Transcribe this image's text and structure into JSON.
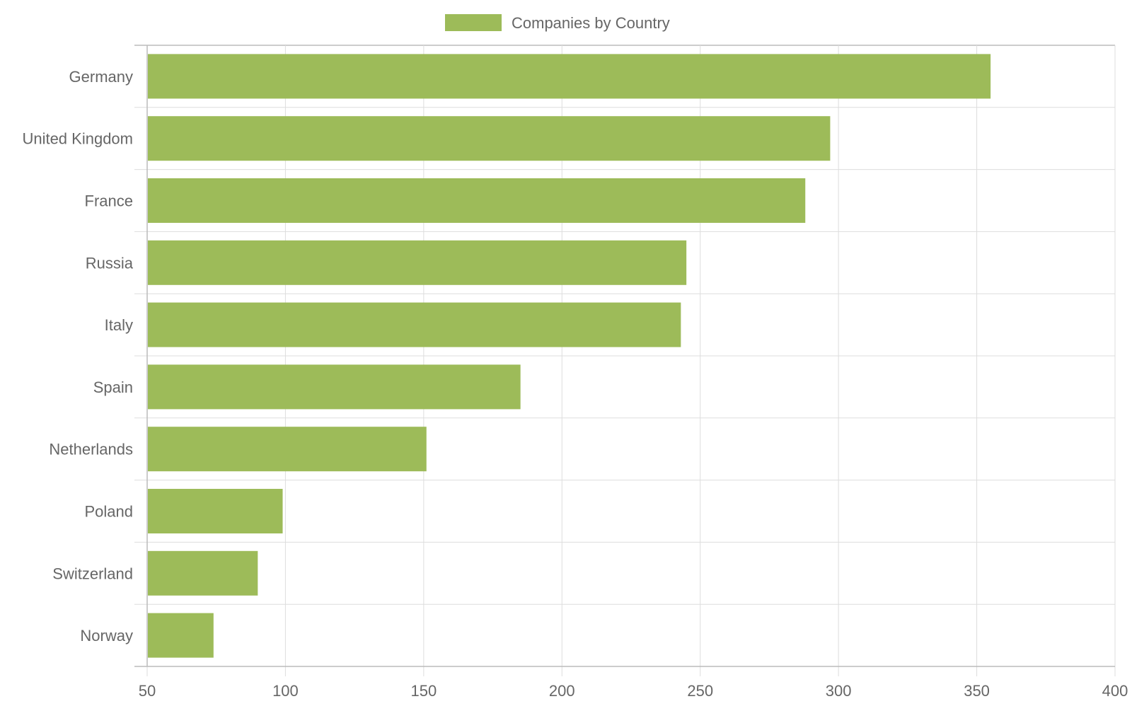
{
  "chart_data": {
    "type": "bar",
    "orientation": "horizontal",
    "categories": [
      "Germany",
      "United Kingdom",
      "France",
      "Russia",
      "Italy",
      "Spain",
      "Netherlands",
      "Poland",
      "Switzerland",
      "Norway"
    ],
    "series": [
      {
        "name": "Companies by Country",
        "values": [
          355,
          297,
          288,
          245,
          243,
          185,
          151,
          99,
          90,
          74
        ],
        "color": "#9dbb59"
      }
    ],
    "x_ticks": [
      "50",
      "100",
      "150",
      "200",
      "250",
      "300",
      "350",
      "400"
    ],
    "xlim": [
      50,
      400
    ],
    "grid": true,
    "legend_position": "top-center"
  },
  "colors": {
    "bar": "#9dbb59",
    "grid": "#dddddd",
    "axis": "#bbbbbb",
    "text": "#666666"
  }
}
